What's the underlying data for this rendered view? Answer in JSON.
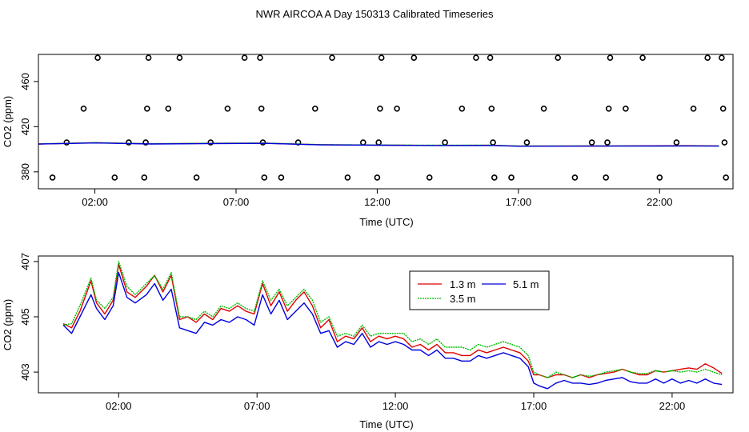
{
  "title": "NWR AIRCOA A  Day 150313  Calibrated Timeseries",
  "colors": {
    "1.3 m": "#e00000",
    "3.5 m": "#00bb00",
    "5.1 m": "#0000dd",
    "points": "#000000"
  },
  "chart_data": [
    {
      "type": "line",
      "title": "",
      "xlabel": "Time (UTC)",
      "ylabel": "CO2 (ppm)",
      "xlim": [
        0,
        24.6
      ],
      "ylim": [
        365,
        484
      ],
      "x_ticks": [
        2,
        7,
        12,
        17,
        22
      ],
      "x_tick_labels": [
        "02:00",
        "07:00",
        "12:00",
        "17:00",
        "22:00"
      ],
      "y_ticks": [
        380,
        420,
        460
      ],
      "y_tick_labels": [
        "380",
        "420",
        "460"
      ],
      "grid": false,
      "legend": null,
      "calibration_points": [
        {
          "x": 0.5,
          "y": 375
        },
        {
          "x": 1.0,
          "y": 406
        },
        {
          "x": 1.6,
          "y": 436
        },
        {
          "x": 2.1,
          "y": 481
        },
        {
          "x": 2.7,
          "y": 375
        },
        {
          "x": 3.2,
          "y": 406
        },
        {
          "x": 3.75,
          "y": 375
        },
        {
          "x": 3.8,
          "y": 406
        },
        {
          "x": 3.85,
          "y": 436
        },
        {
          "x": 3.9,
          "y": 481
        },
        {
          "x": 4.6,
          "y": 436
        },
        {
          "x": 5.0,
          "y": 481
        },
        {
          "x": 5.6,
          "y": 375
        },
        {
          "x": 6.1,
          "y": 406
        },
        {
          "x": 6.7,
          "y": 436
        },
        {
          "x": 7.3,
          "y": 481
        },
        {
          "x": 7.85,
          "y": 481
        },
        {
          "x": 7.9,
          "y": 436
        },
        {
          "x": 7.95,
          "y": 406
        },
        {
          "x": 8.0,
          "y": 375
        },
        {
          "x": 8.6,
          "y": 375
        },
        {
          "x": 9.2,
          "y": 406
        },
        {
          "x": 9.8,
          "y": 436
        },
        {
          "x": 10.4,
          "y": 481
        },
        {
          "x": 10.95,
          "y": 375
        },
        {
          "x": 11.5,
          "y": 406
        },
        {
          "x": 12.0,
          "y": 375
        },
        {
          "x": 12.05,
          "y": 406
        },
        {
          "x": 12.1,
          "y": 436
        },
        {
          "x": 12.15,
          "y": 481
        },
        {
          "x": 12.7,
          "y": 436
        },
        {
          "x": 13.3,
          "y": 481
        },
        {
          "x": 13.85,
          "y": 375
        },
        {
          "x": 14.4,
          "y": 406
        },
        {
          "x": 15.0,
          "y": 436
        },
        {
          "x": 15.5,
          "y": 481
        },
        {
          "x": 16.0,
          "y": 481
        },
        {
          "x": 16.05,
          "y": 436
        },
        {
          "x": 16.1,
          "y": 406
        },
        {
          "x": 16.15,
          "y": 375
        },
        {
          "x": 16.75,
          "y": 375
        },
        {
          "x": 17.3,
          "y": 406
        },
        {
          "x": 17.9,
          "y": 436
        },
        {
          "x": 18.4,
          "y": 481
        },
        {
          "x": 19.0,
          "y": 375
        },
        {
          "x": 19.6,
          "y": 406
        },
        {
          "x": 20.1,
          "y": 375
        },
        {
          "x": 20.15,
          "y": 406
        },
        {
          "x": 20.2,
          "y": 436
        },
        {
          "x": 20.25,
          "y": 481
        },
        {
          "x": 20.8,
          "y": 436
        },
        {
          "x": 21.4,
          "y": 481
        },
        {
          "x": 22.0,
          "y": 375
        },
        {
          "x": 22.6,
          "y": 406
        },
        {
          "x": 23.2,
          "y": 436
        },
        {
          "x": 23.7,
          "y": 481
        },
        {
          "x": 24.2,
          "y": 481
        },
        {
          "x": 24.25,
          "y": 436
        },
        {
          "x": 24.3,
          "y": 406
        },
        {
          "x": 24.35,
          "y": 375
        }
      ],
      "series": [
        {
          "x": [
            0,
            2,
            4,
            6,
            8,
            10,
            12,
            14,
            16,
            17,
            20,
            22,
            23,
            24.1
          ],
          "values": [
            404.7,
            405.8,
            404.8,
            405.2,
            405.4,
            404.0,
            403.7,
            403.4,
            403.5,
            402.8,
            402.9,
            403.1,
            403.2,
            403.0
          ]
        },
        {
          "x": [
            0,
            2,
            4,
            6,
            8,
            10,
            12,
            14,
            16,
            17,
            20,
            22,
            23,
            24.1
          ],
          "values": [
            404.7,
            405.9,
            404.9,
            405.3,
            405.5,
            404.1,
            403.8,
            403.6,
            403.6,
            402.9,
            403.0,
            402.8,
            403.0,
            402.9
          ]
        },
        {
          "x": [
            0,
            2,
            4,
            6,
            8,
            10,
            12,
            14,
            16,
            17,
            20,
            22,
            23,
            24.1
          ],
          "values": [
            404.6,
            405.6,
            404.7,
            405.0,
            405.2,
            403.9,
            403.6,
            403.3,
            403.4,
            402.7,
            402.8,
            402.9,
            403.0,
            402.8
          ]
        }
      ]
    },
    {
      "type": "line",
      "title": "",
      "xlabel": "Time (UTC)",
      "ylabel": "CO2 (ppm)",
      "xlim": [
        -0.9,
        24.2
      ],
      "ylim": [
        402.25,
        407.2
      ],
      "x_ticks": [
        2,
        7,
        12,
        17,
        22
      ],
      "x_tick_labels": [
        "02:00",
        "07:00",
        "12:00",
        "17:00",
        "22:00"
      ],
      "y_ticks": [
        403,
        405,
        407
      ],
      "y_tick_labels": [
        "403",
        "405",
        "407"
      ],
      "grid": false,
      "legend": {
        "placement": "top-center",
        "entries": [
          "1.3 m",
          "5.1 m",
          "3.5 m"
        ]
      },
      "series": [
        {
          "name": "1.3 m",
          "x": [
            0.0,
            0.3,
            0.6,
            1.0,
            1.2,
            1.5,
            1.8,
            2.0,
            2.3,
            2.6,
            3.0,
            3.3,
            3.6,
            3.9,
            4.2,
            4.5,
            4.8,
            5.1,
            5.4,
            5.7,
            6.0,
            6.3,
            6.6,
            6.9,
            7.2,
            7.5,
            7.8,
            8.1,
            8.4,
            8.7,
            9.0,
            9.3,
            9.6,
            9.9,
            10.2,
            10.5,
            10.8,
            11.1,
            11.4,
            11.7,
            12.0,
            12.3,
            12.6,
            12.9,
            13.2,
            13.5,
            13.8,
            14.1,
            14.4,
            14.7,
            15.0,
            15.3,
            15.6,
            15.9,
            16.2,
            16.5,
            16.8,
            17.0,
            17.2,
            17.5,
            17.8,
            18.1,
            18.4,
            18.7,
            19.0,
            19.3,
            19.6,
            19.9,
            20.2,
            20.5,
            20.8,
            21.1,
            21.4,
            21.7,
            22.0,
            22.3,
            22.6,
            22.9,
            23.2,
            23.5,
            23.8
          ],
          "values": [
            404.75,
            404.6,
            405.2,
            406.3,
            405.5,
            405.1,
            405.6,
            406.9,
            405.9,
            405.7,
            406.1,
            406.5,
            405.9,
            406.5,
            404.9,
            405.0,
            404.8,
            405.1,
            404.9,
            405.3,
            405.2,
            405.4,
            405.2,
            405.1,
            406.2,
            405.4,
            405.9,
            405.2,
            405.6,
            405.9,
            405.4,
            404.6,
            404.9,
            404.1,
            404.3,
            404.2,
            404.6,
            404.1,
            404.3,
            404.2,
            404.3,
            404.2,
            403.9,
            404.0,
            403.8,
            404.0,
            403.7,
            403.7,
            403.6,
            403.6,
            403.8,
            403.7,
            403.8,
            403.9,
            403.8,
            403.7,
            403.4,
            402.9,
            402.9,
            402.8,
            402.9,
            402.9,
            402.8,
            402.9,
            402.8,
            402.9,
            402.95,
            403.0,
            403.1,
            403.0,
            402.9,
            402.9,
            403.05,
            403.0,
            403.05,
            403.1,
            403.15,
            403.1,
            403.3,
            403.15,
            402.95
          ]
        },
        {
          "name": "3.5 m",
          "x": [
            0.0,
            0.3,
            0.6,
            1.0,
            1.2,
            1.5,
            1.8,
            2.0,
            2.3,
            2.6,
            3.0,
            3.3,
            3.6,
            3.9,
            4.2,
            4.5,
            4.8,
            5.1,
            5.4,
            5.7,
            6.0,
            6.3,
            6.6,
            6.9,
            7.2,
            7.5,
            7.8,
            8.1,
            8.4,
            8.7,
            9.0,
            9.3,
            9.6,
            9.9,
            10.2,
            10.5,
            10.8,
            11.1,
            11.4,
            11.7,
            12.0,
            12.3,
            12.6,
            12.9,
            13.2,
            13.5,
            13.8,
            14.1,
            14.4,
            14.7,
            15.0,
            15.3,
            15.6,
            15.9,
            16.2,
            16.5,
            16.8,
            17.0,
            17.2,
            17.5,
            17.8,
            18.1,
            18.4,
            18.7,
            19.0,
            19.3,
            19.6,
            19.9,
            20.2,
            20.5,
            20.8,
            21.1,
            21.4,
            21.7,
            22.0,
            22.3,
            22.6,
            22.9,
            23.2,
            23.5,
            23.8
          ],
          "values": [
            404.7,
            404.75,
            405.4,
            406.4,
            405.6,
            405.3,
            405.7,
            407.0,
            406.1,
            405.8,
            406.2,
            406.5,
            406.0,
            406.6,
            405.0,
            405.0,
            404.9,
            405.2,
            405.0,
            405.4,
            405.3,
            405.5,
            405.3,
            405.2,
            406.3,
            405.6,
            406.0,
            405.4,
            405.7,
            406.0,
            405.6,
            404.8,
            405.0,
            404.3,
            404.4,
            404.3,
            404.7,
            404.3,
            404.4,
            404.4,
            404.4,
            404.4,
            404.1,
            404.2,
            404.0,
            404.2,
            403.9,
            403.9,
            403.9,
            403.8,
            404.0,
            403.9,
            404.0,
            404.1,
            404.0,
            403.9,
            403.6,
            403.0,
            402.9,
            402.8,
            403.0,
            402.9,
            402.8,
            402.9,
            402.85,
            402.9,
            403.0,
            403.05,
            403.1,
            403.0,
            402.95,
            402.95,
            403.05,
            403.0,
            403.05,
            403.0,
            403.05,
            403.0,
            403.1,
            403.0,
            402.9
          ]
        },
        {
          "name": "5.1 m",
          "x": [
            0.0,
            0.3,
            0.6,
            1.0,
            1.2,
            1.5,
            1.8,
            2.0,
            2.3,
            2.6,
            3.0,
            3.3,
            3.6,
            3.9,
            4.2,
            4.5,
            4.8,
            5.1,
            5.4,
            5.7,
            6.0,
            6.3,
            6.6,
            6.9,
            7.2,
            7.5,
            7.8,
            8.1,
            8.4,
            8.7,
            9.0,
            9.3,
            9.6,
            9.9,
            10.2,
            10.5,
            10.8,
            11.1,
            11.4,
            11.7,
            12.0,
            12.3,
            12.6,
            12.9,
            13.2,
            13.5,
            13.8,
            14.1,
            14.4,
            14.7,
            15.0,
            15.3,
            15.6,
            15.9,
            16.2,
            16.5,
            16.8,
            17.0,
            17.2,
            17.5,
            17.8,
            18.1,
            18.4,
            18.7,
            19.0,
            19.3,
            19.6,
            19.9,
            20.2,
            20.5,
            20.8,
            21.1,
            21.4,
            21.7,
            22.0,
            22.3,
            22.6,
            22.9,
            23.2,
            23.5,
            23.8
          ],
          "values": [
            404.7,
            404.4,
            405.0,
            405.8,
            405.3,
            404.9,
            405.4,
            406.6,
            405.7,
            405.5,
            405.8,
            406.2,
            405.6,
            406.0,
            404.6,
            404.5,
            404.4,
            404.8,
            404.7,
            404.9,
            404.8,
            405.0,
            404.9,
            404.7,
            405.8,
            405.1,
            405.6,
            404.9,
            405.2,
            405.5,
            405.1,
            404.4,
            404.5,
            403.9,
            404.1,
            404.0,
            404.4,
            403.9,
            404.1,
            404.0,
            404.1,
            404.0,
            403.8,
            403.8,
            403.6,
            403.8,
            403.5,
            403.5,
            403.4,
            403.4,
            403.6,
            403.5,
            403.6,
            403.7,
            403.6,
            403.5,
            403.2,
            402.6,
            402.5,
            402.4,
            402.6,
            402.7,
            402.6,
            402.6,
            402.55,
            402.6,
            402.7,
            402.75,
            402.8,
            402.65,
            402.6,
            402.6,
            402.75,
            402.6,
            402.75,
            402.6,
            402.7,
            402.6,
            402.75,
            402.6,
            402.55
          ]
        }
      ]
    }
  ]
}
